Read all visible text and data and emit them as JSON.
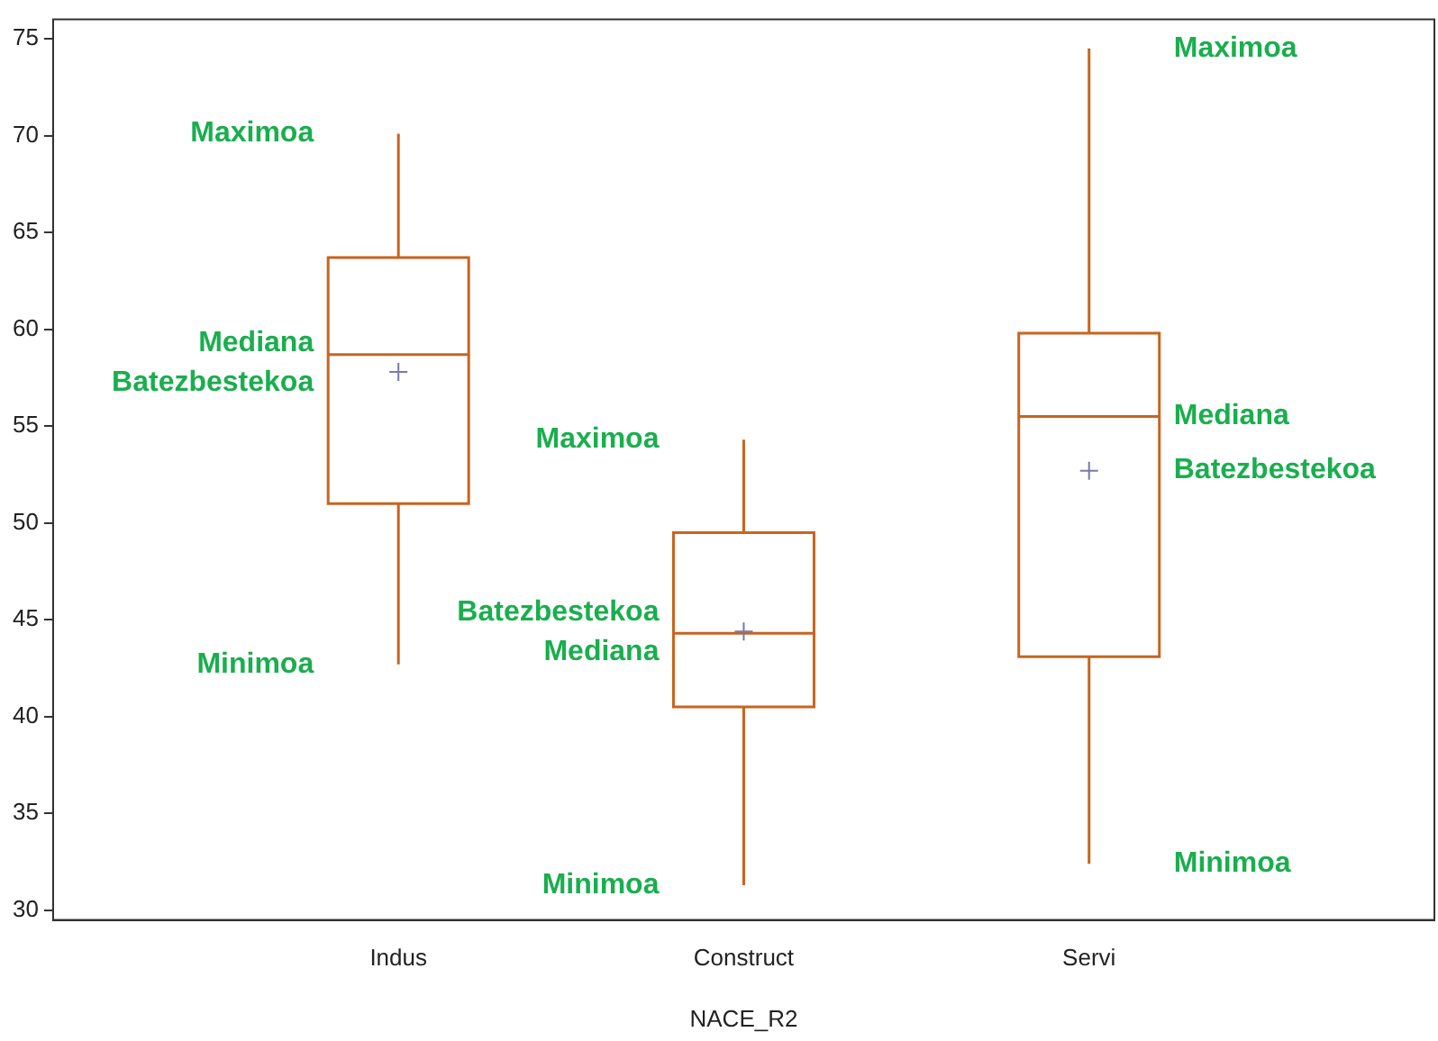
{
  "chart_data": {
    "type": "box",
    "xlabel": "NACE_R2",
    "categories": [
      "Indus",
      "Construct",
      "Servi"
    ],
    "series": [
      {
        "color": "#c8641e",
        "boxes": [
          {
            "low": 42.7,
            "q1": 51.0,
            "median": 58.7,
            "q3": 63.7,
            "high": 70.1,
            "mean": 57.8
          },
          {
            "low": 31.3,
            "q1": 40.5,
            "median": 44.3,
            "q3": 49.5,
            "high": 54.3,
            "mean": 44.4
          },
          {
            "low": 32.4,
            "q1": 43.1,
            "median": 55.5,
            "q3": 59.8,
            "high": 74.5,
            "mean": 52.7
          }
        ]
      }
    ],
    "ylim": [
      29.5,
      76
    ],
    "yticks": [
      30,
      35,
      40,
      45,
      50,
      55,
      60,
      65,
      70,
      75
    ],
    "grid": false,
    "legend": false,
    "annotations": [
      "Maximoa",
      "Mediana",
      "Batezbestekoa",
      "Minimoa",
      "Maximoa",
      "Mediana",
      "Batezbestekoa",
      "Minimoa",
      "Maximoa",
      "Mediana",
      "Batezbestekoa",
      "Minimoa"
    ]
  }
}
